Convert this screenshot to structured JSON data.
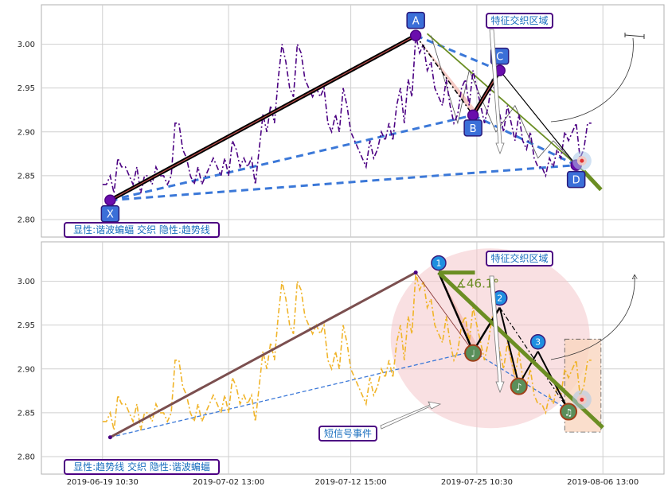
{
  "chart_data": [
    {
      "type": "line",
      "panel": "top",
      "ylim": [
        2.78,
        3.045
      ],
      "yticks": [
        2.8,
        2.85,
        2.9,
        2.95,
        3.0
      ],
      "grid": true,
      "series": [
        {
          "color": "#4b0082",
          "style": "dash-dot",
          "values": [
            2.84,
            2.84,
            2.85,
            2.83,
            2.87,
            2.86,
            2.86,
            2.85,
            2.84,
            2.86,
            2.83,
            2.85,
            2.85,
            2.84,
            2.86,
            2.85,
            2.85,
            2.84,
            2.85,
            2.91,
            2.91,
            2.88,
            2.87,
            2.85,
            2.84,
            2.86,
            2.84,
            2.85,
            2.86,
            2.87,
            2.86,
            2.85,
            2.87,
            2.85,
            2.89,
            2.88,
            2.86,
            2.87,
            2.86,
            2.87,
            2.84,
            2.88,
            2.92,
            2.9,
            2.93,
            2.91,
            2.96,
            3.0,
            2.98,
            2.95,
            2.94,
            3.0,
            2.99,
            2.96,
            2.95,
            2.94,
            2.95,
            2.94,
            2.95,
            2.91,
            2.9,
            2.92,
            2.9,
            2.95,
            2.93,
            2.9,
            2.89,
            2.88,
            2.87,
            2.86,
            2.89,
            2.87,
            2.88,
            2.9,
            2.89,
            2.91,
            2.89,
            2.93,
            2.95,
            2.91,
            2.96,
            2.94,
            3.01,
            2.99,
            3.0,
            2.97,
            2.98,
            2.95,
            2.94,
            2.93,
            2.96,
            2.93,
            2.91,
            2.92,
            2.95,
            2.96,
            2.93,
            2.97,
            2.95,
            2.93,
            2.91,
            2.93,
            2.96,
            2.94,
            2.92,
            2.9,
            2.93,
            2.91,
            2.89,
            2.92,
            2.89,
            2.88,
            2.9,
            2.87,
            2.86,
            2.86,
            2.85,
            2.87,
            2.86,
            2.88,
            2.87,
            2.9,
            2.89,
            2.9,
            2.91,
            2.87,
            2.88,
            2.91,
            2.91
          ]
        }
      ],
      "pattern_points": [
        {
          "label": "X",
          "x": 2,
          "y": 2.822
        },
        {
          "label": "A",
          "x": 82,
          "y": 3.01
        },
        {
          "label": "B",
          "x": 97,
          "y": 2.919
        },
        {
          "label": "C",
          "x": 104,
          "y": 2.97
        },
        {
          "label": "D",
          "x": 124,
          "y": 2.862
        }
      ],
      "annotations": [
        {
          "text": "特征交织区域"
        },
        {
          "text": "显性:谐波蝙蝠 交织 隐性:趋势线"
        }
      ]
    },
    {
      "type": "line",
      "panel": "bottom",
      "ylim": [
        2.78,
        3.045
      ],
      "yticks": [
        2.8,
        2.85,
        2.9,
        2.95,
        3.0
      ],
      "grid": true,
      "series": [
        {
          "color": "#f0b429",
          "style": "dash-dot"
        }
      ],
      "numbered_points": [
        {
          "label": "1",
          "x": 88,
          "y": 3.01
        },
        {
          "label": "2",
          "x": 104,
          "y": 2.97
        },
        {
          "label": "3",
          "x": 114,
          "y": 2.92
        }
      ],
      "note_points": [
        {
          "label": "♩",
          "x": 97,
          "y": 2.92
        },
        {
          "label": "♪",
          "x": 109,
          "y": 2.882
        },
        {
          "label": "♫",
          "x": 122,
          "y": 2.853
        }
      ],
      "annotations": [
        {
          "text": "特征交织区域"
        },
        {
          "text": "∡46.1°"
        },
        {
          "text": "短信号事件"
        },
        {
          "text": "显性:趋势线 交织 隐性:谐波蝙蝠"
        }
      ]
    }
  ],
  "x_axis": {
    "ticks": [
      {
        "x": 0,
        "label": "2019-06-19 10:30"
      },
      {
        "x": 33,
        "label": "2019-07-02 13:00"
      },
      {
        "x": 65,
        "label": "2019-07-12 15:00"
      },
      {
        "x": 98,
        "label": "2019-07-25 10:30"
      },
      {
        "x": 131,
        "label": "2019-08-06 13:00"
      }
    ],
    "range": [
      -16,
      147
    ]
  },
  "colors": {
    "grid": "#cfcfcf",
    "axes": "#b0b0b0",
    "price_top": "#4b0082",
    "price_bottom": "#f0b429",
    "dashed_blue": "#3b78d8",
    "olive": "#6b8e23",
    "label_border": "#4b0082",
    "label_text": "#1a6fbf"
  }
}
